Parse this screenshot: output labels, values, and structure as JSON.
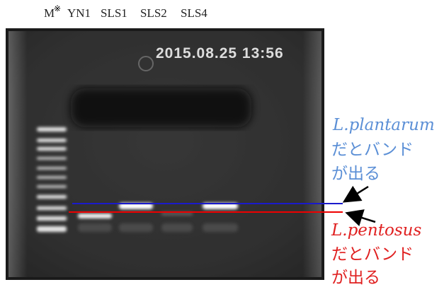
{
  "lanes": [
    "M",
    "YN1",
    "SLS1",
    "SLS2",
    "SLS4"
  ],
  "marker_symbol": "※",
  "timestamp": "2015.08.25 13:56",
  "annotations": [
    {
      "species": "L.plantarum",
      "lines": [
        "だとバンド",
        "が出る"
      ]
    },
    {
      "species": "L.pentosus",
      "lines": [
        "だとバンド",
        "が出る"
      ]
    }
  ]
}
